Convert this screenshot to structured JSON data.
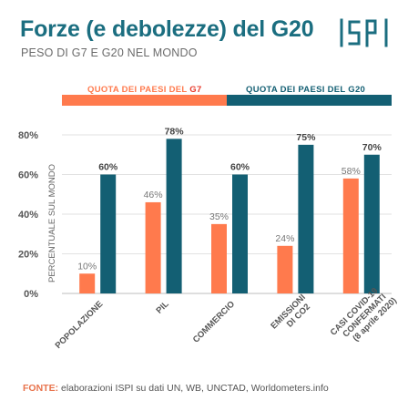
{
  "header": {
    "title": "Forze (e debolezze) del G20",
    "subtitle": "PESO DI G7 E G20 NEL MONDO",
    "logo_text": "ISPI"
  },
  "legend": {
    "g7_prefix": "QUOTA DEI PAESI DEL ",
    "g7_name": "G7",
    "g20_prefix": "QUOTA DEI PAESI DEL ",
    "g20_name": "G20"
  },
  "colors": {
    "g7": "#ff7a4d",
    "g20": "#135f73",
    "title": "#1b6e80",
    "axis_text": "#555555"
  },
  "chart_data": {
    "type": "bar",
    "categories": [
      [
        "POPOLAZIONE"
      ],
      [
        "PIL"
      ],
      [
        "COMMERCIO"
      ],
      [
        "EMISSIONI",
        "DI CO2"
      ],
      [
        "CASI COVID-19",
        "CONFERMATI",
        "(8 aprile 2020)"
      ]
    ],
    "series": [
      {
        "name": "G7",
        "values": [
          10,
          46,
          35,
          24,
          58
        ],
        "labels": [
          "10%",
          "46%",
          "35%",
          "24%",
          "58%"
        ]
      },
      {
        "name": "G20",
        "values": [
          60,
          78,
          60,
          75,
          70
        ],
        "labels": [
          "60%",
          "78%",
          "60%",
          "75%",
          "70%"
        ]
      }
    ],
    "ylabel": "PERCENTUALE SUL MONDO",
    "ylim": [
      0,
      80
    ],
    "yticks": [
      0,
      20,
      40,
      60,
      80
    ],
    "ytick_labels": [
      "0%",
      "20%",
      "40%",
      "60%",
      "80%"
    ],
    "grid": true,
    "legend_position": "top"
  },
  "source": {
    "label": "FONTE:",
    "text": " elaborazioni ISPI su dati UN, WB, UNCTAD, Worldometers.info"
  }
}
